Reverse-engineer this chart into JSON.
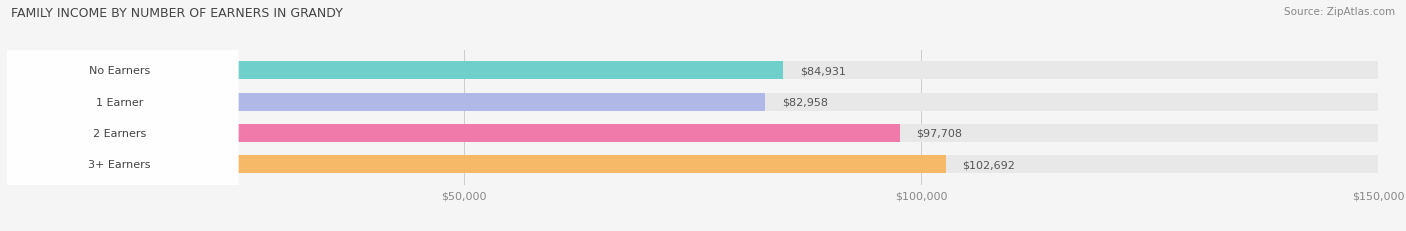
{
  "title": "FAMILY INCOME BY NUMBER OF EARNERS IN GRANDY",
  "source": "Source: ZipAtlas.com",
  "categories": [
    "No Earners",
    "1 Earner",
    "2 Earners",
    "3+ Earners"
  ],
  "values": [
    84931,
    82958,
    97708,
    102692
  ],
  "bar_colors": [
    "#6ecfcb",
    "#b0b8e8",
    "#f07aaa",
    "#f5b968"
  ],
  "value_labels": [
    "$84,931",
    "$82,958",
    "$97,708",
    "$102,692"
  ],
  "xlim": [
    0,
    150000
  ],
  "xticks": [
    50000,
    100000,
    150000
  ],
  "xtick_labels": [
    "$50,000",
    "$100,000",
    "$150,000"
  ],
  "background_color": "#f5f5f5",
  "bar_background_color": "#e8e8e8",
  "title_fontsize": 9,
  "label_fontsize": 8,
  "tick_fontsize": 8,
  "source_fontsize": 7.5,
  "bar_height": 0.58,
  "figsize": [
    14.06,
    2.32
  ]
}
